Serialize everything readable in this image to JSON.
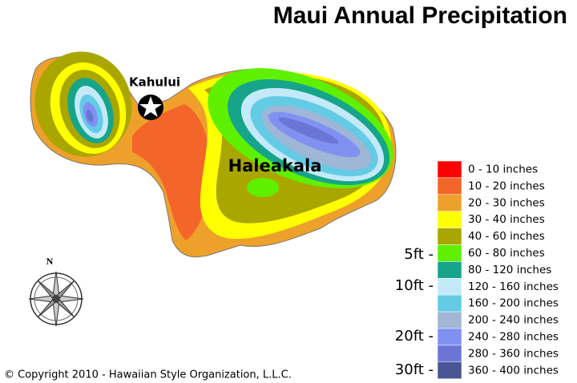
{
  "title": "Maui Annual Precipitation",
  "places": {
    "kahului": "Kahului",
    "haleakala": "Haleakala"
  },
  "compass": "N",
  "depth_labels": [
    "5ft -",
    "10ft -",
    "20ft -",
    "30ft -"
  ],
  "legend": [
    {
      "label": "0 - 10 inches",
      "color": "#ff0000"
    },
    {
      "label": "10 - 20 inches",
      "color": "#f4652a"
    },
    {
      "label": "20 - 30 inches",
      "color": "#eea12a"
    },
    {
      "label": "30 - 40 inches",
      "color": "#ffff00"
    },
    {
      "label": "40 - 60 inches",
      "color": "#a9a600"
    },
    {
      "label": "60 - 80 inches",
      "color": "#5ff000"
    },
    {
      "label": "80 - 120 inches",
      "color": "#16a58a"
    },
    {
      "label": "120 - 160 inches",
      "color": "#c4eafa"
    },
    {
      "label": "160 - 200 inches",
      "color": "#64cbe4"
    },
    {
      "label": "200 - 240 inches",
      "color": "#9fb6d6"
    },
    {
      "label": "240 - 280 inches",
      "color": "#8191f2"
    },
    {
      "label": "280 - 360 inches",
      "color": "#6b76d4"
    },
    {
      "label": "360 - 400 inches",
      "color": "#4a5596"
    }
  ],
  "copyright": "© Copyright 2010 - Hawaiian Style Organization, L.L.C."
}
